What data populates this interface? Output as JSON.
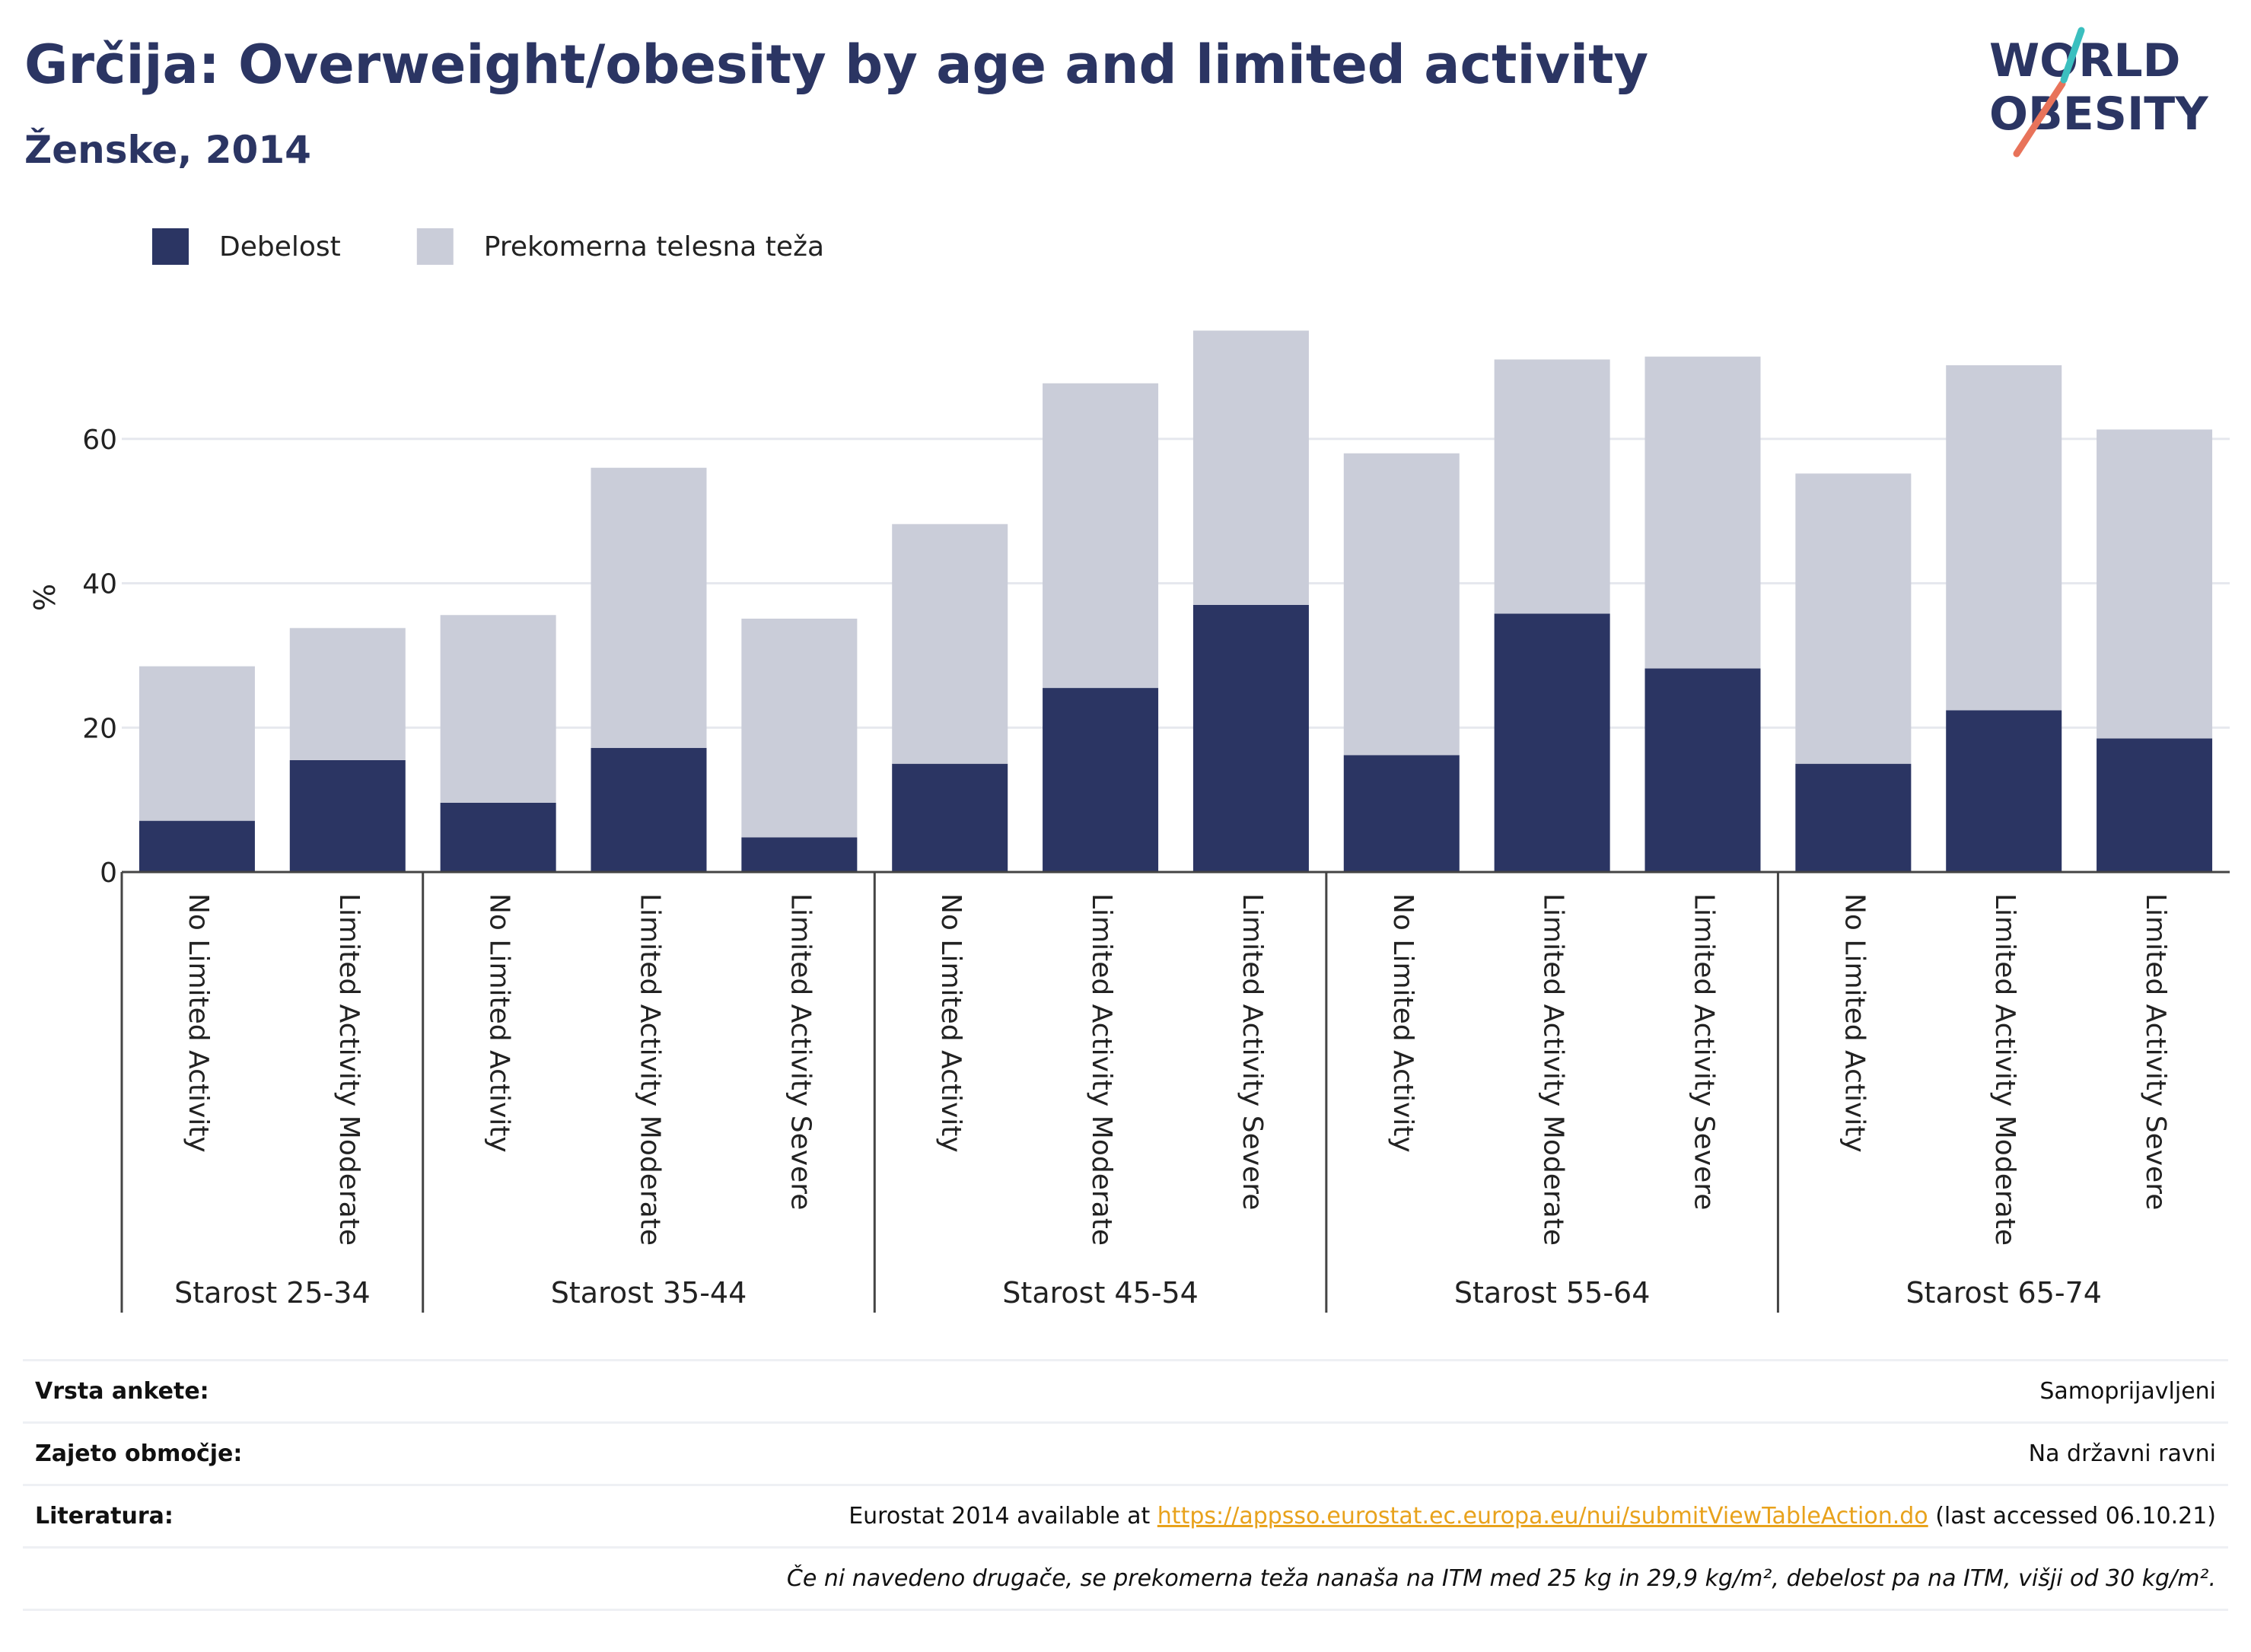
{
  "header": {
    "title": "Grčija: Overweight/obesity by age and limited activity",
    "subtitle": "Ženske, 2014"
  },
  "logo": {
    "line1": "WORLD",
    "line2": "OBESITY"
  },
  "colors": {
    "obesity": "#2b3563",
    "overweight": "#cacdd9",
    "accent_line": "#e8735a",
    "accent_teal": "#3bbfbf",
    "link": "#e8a21c"
  },
  "chart_data": {
    "type": "bar",
    "stacked": true,
    "ylabel": "%",
    "ylim": [
      0,
      78
    ],
    "yticks": [
      0,
      20,
      40,
      60
    ],
    "grid": true,
    "legend_placement": "top-left",
    "groups": [
      {
        "label": "Starost 25-34",
        "categories": [
          "No Limited Activity",
          "Limited Activity Moderate"
        ]
      },
      {
        "label": "Starost 35-44",
        "categories": [
          "No Limited Activity",
          "Limited Activity Moderate",
          "Limited Activity Severe"
        ]
      },
      {
        "label": "Starost 45-54",
        "categories": [
          "No Limited Activity",
          "Limited Activity Moderate",
          "Limited Activity Severe"
        ]
      },
      {
        "label": "Starost 55-64",
        "categories": [
          "No Limited Activity",
          "Limited Activity Moderate",
          "Limited Activity Severe"
        ]
      },
      {
        "label": "Starost 65-74",
        "categories": [
          "No Limited Activity",
          "Limited Activity Moderate",
          "Limited Activity Severe"
        ]
      }
    ],
    "series": [
      {
        "name": "Debelost",
        "color": "#2b3563",
        "values": [
          7.1,
          15.5,
          9.6,
          17.2,
          4.8,
          15.0,
          25.5,
          37.0,
          16.2,
          35.8,
          28.2,
          15.0,
          22.4,
          18.5
        ]
      },
      {
        "name": "Prekomerna telesna teža",
        "color": "#cacdd9",
        "values": [
          21.4,
          18.3,
          26.0,
          38.8,
          30.3,
          33.2,
          42.2,
          38.0,
          41.8,
          35.2,
          43.2,
          40.2,
          47.8,
          42.8
        ]
      }
    ]
  },
  "info": {
    "rows": [
      {
        "label": "Vrsta ankete:",
        "value": "Samoprijavljeni"
      },
      {
        "label": "Zajeto območje:",
        "value": "Na državni ravni"
      }
    ],
    "literature": {
      "label": "Literatura:",
      "prefix": "Eurostat 2014 available at",
      "link": "https://appsso.eurostat.ec.europa.eu/nui/submitViewTableAction.do",
      "suffix": "(last accessed 06.10.21)"
    },
    "footnote": "Če ni navedeno drugače, se prekomerna teža nanaša na ITM med 25 kg in 29,9 kg/m², debelost pa na ITM, višji od 30 kg/m²."
  }
}
